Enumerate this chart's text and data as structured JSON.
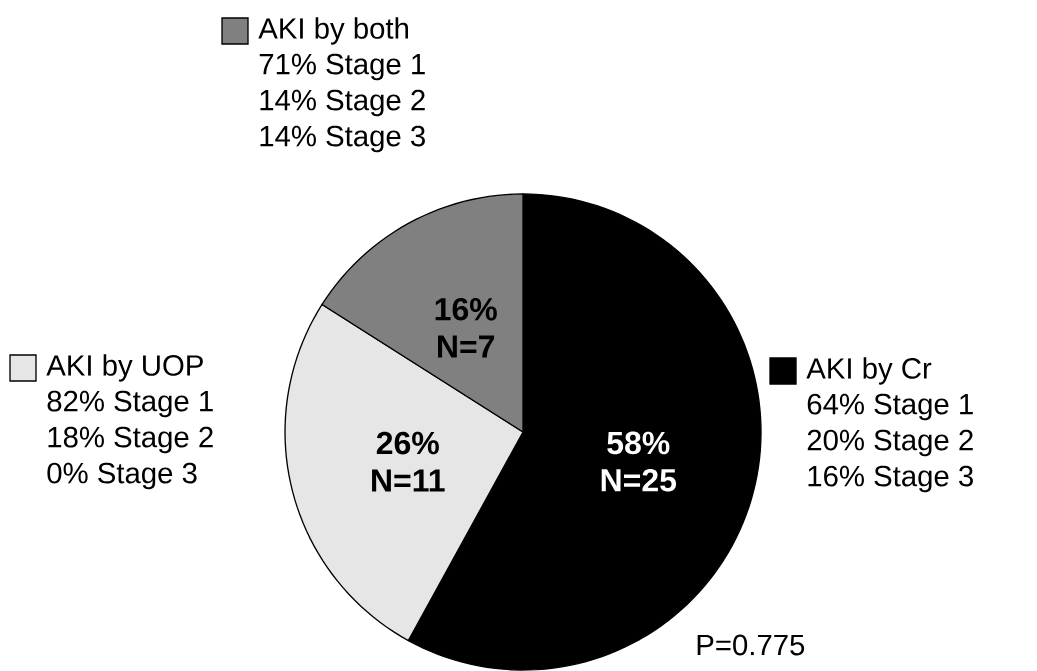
{
  "chart_data": {
    "type": "pie",
    "categories": [
      "AKI by Cr",
      "AKI by UOP",
      "AKI by both"
    ],
    "values": [
      58,
      26,
      16
    ],
    "colors": [
      "#000000",
      "#e6e6e6",
      "#808080"
    ],
    "legend": "left",
    "value_labels": [
      "58% N=25",
      "26% N=11",
      "16% N=7"
    ],
    "annotations": [
      "64% Stage 1",
      "20% Stage 2",
      "16% Stage 3",
      "82% Stage 1",
      "18% Stage 2",
      "0% Stage 3",
      "71% Stage 1",
      "14% Stage 2",
      "14% Stage 3",
      "P=0.775"
    ]
  }
}
